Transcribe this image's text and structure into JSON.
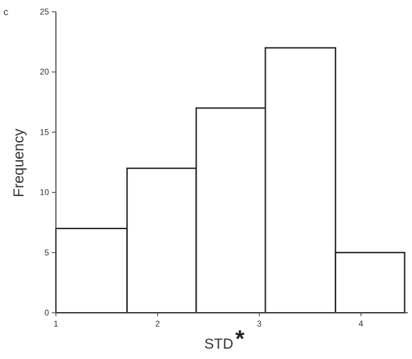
{
  "panel_label": "c",
  "chart_data": {
    "type": "bar",
    "histogram": true,
    "bins": [
      {
        "start": 1.0,
        "end": 1.7,
        "frequency": 7
      },
      {
        "start": 1.7,
        "end": 2.38,
        "frequency": 12
      },
      {
        "start": 2.38,
        "end": 3.06,
        "frequency": 17
      },
      {
        "start": 3.06,
        "end": 3.75,
        "frequency": 22
      },
      {
        "start": 3.75,
        "end": 4.43,
        "frequency": 5
      }
    ],
    "values": [
      7,
      12,
      17,
      22,
      5
    ],
    "xlabel": "STD",
    "xlabel_suffix": "*",
    "ylabel": "Frequency",
    "xlim": [
      1,
      4.43
    ],
    "ylim": [
      0,
      25
    ],
    "xticks": [
      "1",
      "2",
      "3",
      "4"
    ],
    "xtick_values": [
      1,
      2,
      3,
      4
    ],
    "yticks": [
      "0",
      "5",
      "10",
      "15",
      "20",
      "25"
    ],
    "ytick_values": [
      0,
      5,
      10,
      15,
      20,
      25
    ],
    "grid": false,
    "legend": "none",
    "bar_fill": "#ffffff",
    "bar_stroke": "#222222",
    "axis_color": "#444444"
  }
}
